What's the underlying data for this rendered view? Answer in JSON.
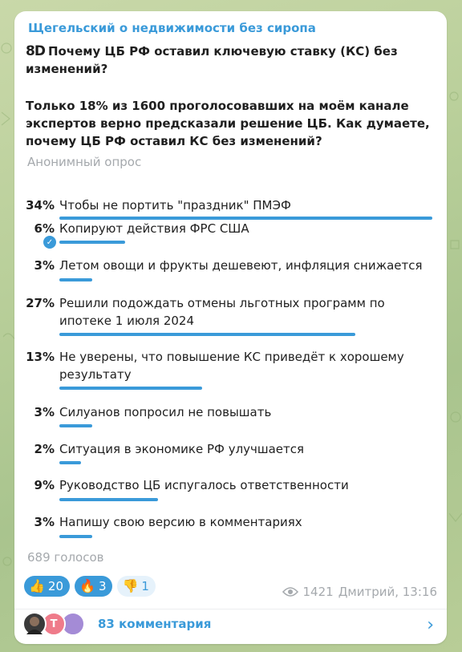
{
  "channel": {
    "name": "Щегельский о недвижимости без сиропа"
  },
  "poll": {
    "logo": "8D",
    "question": "Почему ЦБ РФ оставил ключевую ставку (КС) без изменений?",
    "description": "Только 18% из 1600 проголосовавших на моём канале экспертов верно предсказали решение ЦБ.  Как думаете, почему ЦБ РФ оставил КС без изменений?",
    "type": "Анонимный опрос",
    "options": [
      {
        "percent": "34%",
        "value": 34,
        "text": "Чтобы не портить \"праздник\" ПМЭФ",
        "selected": false
      },
      {
        "percent": "6%",
        "value": 6,
        "text": "Копируют действия ФРС США",
        "selected": true
      },
      {
        "percent": "3%",
        "value": 3,
        "text": "Летом овощи и фрукты дешевеют, инфляция снижается",
        "selected": false
      },
      {
        "percent": "27%",
        "value": 27,
        "text": "Решили подождать отмены льготных программ по ипотеке 1 июля 2024",
        "selected": false
      },
      {
        "percent": "13%",
        "value": 13,
        "text": "Не уверены, что повышение КС приведёт к хорошему результату",
        "selected": false
      },
      {
        "percent": "3%",
        "value": 3,
        "text": "Силуанов попросил не повышать",
        "selected": false
      },
      {
        "percent": "2%",
        "value": 2,
        "text": "Ситуация в экономике РФ улучшается",
        "selected": false
      },
      {
        "percent": "9%",
        "value": 9,
        "text": "Руководство ЦБ испугалось ответственности",
        "selected": false
      },
      {
        "percent": "3%",
        "value": 3,
        "text": "Напишу свою версию в комментариях",
        "selected": false
      }
    ],
    "votes": "689 голосов"
  },
  "reactions": [
    {
      "emoji": "👍",
      "icon": "thumbs-up-icon",
      "count": "20",
      "active": true
    },
    {
      "emoji": "🔥",
      "icon": "fire-icon",
      "count": "3",
      "active": true
    },
    {
      "emoji": "👎",
      "icon": "thumbs-down-icon",
      "count": "1",
      "active": false
    }
  ],
  "meta": {
    "views": "1421",
    "author_time": "Дмитрий, 13:16"
  },
  "comments": {
    "avatar_letter": "Т",
    "label": "83 комментария"
  },
  "colors": {
    "accent": "#3a9ad9",
    "muted": "#a5a9ad",
    "text": "#1f1f1f"
  }
}
